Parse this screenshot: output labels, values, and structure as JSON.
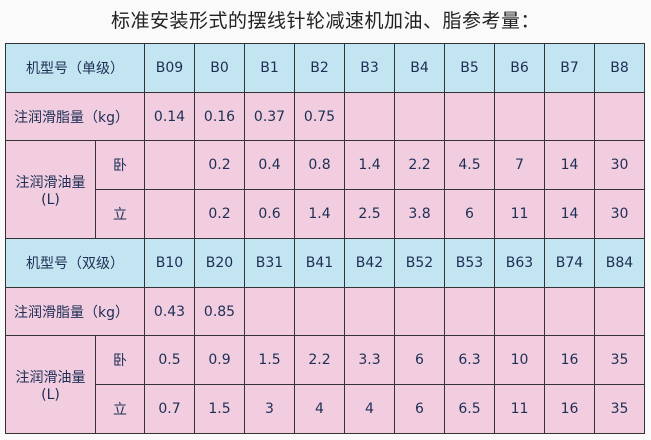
{
  "title": "标准安装形式的摆线针轮减速机加油、脂参考量：",
  "single": {
    "header_label": "机型号（单级）",
    "models": [
      "B09",
      "B0",
      "B1",
      "B2",
      "B3",
      "B4",
      "B5",
      "B6",
      "B7",
      "B8"
    ],
    "grease_label": "注润滑脂量（kg）",
    "grease": [
      "0.14",
      "0.16",
      "0.37",
      "0.75",
      "",
      "",
      "",
      "",
      "",
      ""
    ],
    "oil_label": "注润滑油量",
    "oil_unit": "(L)",
    "horizontal_label": "卧",
    "horizontal": [
      "",
      "0.2",
      "0.4",
      "0.8",
      "1.4",
      "2.2",
      "4.5",
      "7",
      "14",
      "30"
    ],
    "vertical_label": "立",
    "vertical": [
      "",
      "0.2",
      "0.6",
      "1.4",
      "2.5",
      "3.8",
      "6",
      "11",
      "14",
      "30"
    ]
  },
  "double": {
    "header_label": "机型号（双级）",
    "models": [
      "B10",
      "B20",
      "B31",
      "B41",
      "B42",
      "B52",
      "B53",
      "B63",
      "B74",
      "B84"
    ],
    "grease_label": "注润滑脂量（kg）",
    "grease": [
      "0.43",
      "0.85",
      "",
      "",
      "",
      "",
      "",
      "",
      "",
      ""
    ],
    "oil_label": "注润滑油量",
    "oil_unit": "(L)",
    "horizontal_label": "卧",
    "horizontal": [
      "0.5",
      "0.9",
      "1.5",
      "2.2",
      "3.3",
      "6",
      "6.3",
      "10",
      "16",
      "35"
    ],
    "vertical_label": "立",
    "vertical": [
      "0.7",
      "1.5",
      "3",
      "4",
      "4",
      "6",
      "6.5",
      "11",
      "16",
      "35"
    ]
  }
}
